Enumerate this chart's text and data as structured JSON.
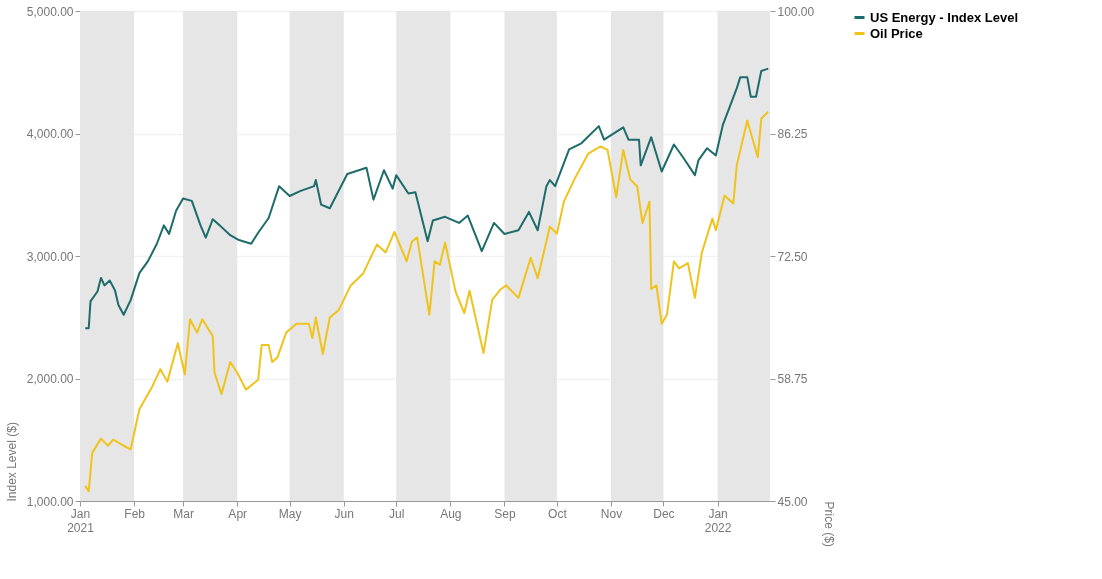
{
  "chart_data": {
    "type": "line",
    "ylabel": "Index Level ($)",
    "y2label": "Price ($)",
    "xlim": [
      "2021-01-01",
      "2022-01-31"
    ],
    "xticks": [
      {
        "value": "2021-01-01",
        "label": "Jan 2021"
      },
      {
        "value": "2021-02-01",
        "label": "Feb"
      },
      {
        "value": "2021-03-01",
        "label": "Mar"
      },
      {
        "value": "2021-04-01",
        "label": "Apr"
      },
      {
        "value": "2021-05-01",
        "label": "May"
      },
      {
        "value": "2021-06-01",
        "label": "Jun"
      },
      {
        "value": "2021-07-01",
        "label": "Jul"
      },
      {
        "value": "2021-08-01",
        "label": "Aug"
      },
      {
        "value": "2021-09-01",
        "label": "Sep"
      },
      {
        "value": "2021-10-01",
        "label": "Oct"
      },
      {
        "value": "2021-11-01",
        "label": "Nov"
      },
      {
        "value": "2021-12-01",
        "label": "Dec"
      },
      {
        "value": "2022-01-01",
        "label": "Jan 2022"
      }
    ],
    "ylim": [
      1000,
      5000
    ],
    "yticks": [
      {
        "value": 1000,
        "label": "1,000.00"
      },
      {
        "value": 2000,
        "label": "2,000.00"
      },
      {
        "value": 3000,
        "label": "3,000.00"
      },
      {
        "value": 4000,
        "label": "4,000.00"
      },
      {
        "value": 5000,
        "label": "5,000.00"
      }
    ],
    "y2lim": [
      45,
      100
    ],
    "y2ticks": [
      {
        "value": 45,
        "label": "45.00"
      },
      {
        "value": 58.75,
        "label": "58.75"
      },
      {
        "value": 72.5,
        "label": "72.50"
      },
      {
        "value": 86.25,
        "label": "86.25"
      },
      {
        "value": 100,
        "label": "100.00"
      }
    ],
    "grid": "y",
    "legend": "top right",
    "line_style": "solid",
    "marker": "none",
    "bands": [
      {
        "axis": "x",
        "from": "2021-01-01",
        "to": "2021-02-01",
        "color": "#e6e6e6"
      },
      {
        "axis": "x",
        "from": "2021-03-01",
        "to": "2021-04-01",
        "color": "#e6e6e6"
      },
      {
        "axis": "x",
        "from": "2021-05-01",
        "to": "2021-06-01",
        "color": "#e6e6e6"
      },
      {
        "axis": "x",
        "from": "2021-07-01",
        "to": "2021-08-01",
        "color": "#e6e6e6"
      },
      {
        "axis": "x",
        "from": "2021-09-01",
        "to": "2021-10-01",
        "color": "#e6e6e6"
      },
      {
        "axis": "x",
        "from": "2021-11-01",
        "to": "2021-12-01",
        "color": "#e6e6e6"
      },
      {
        "axis": "x",
        "from": "2022-01-01",
        "to": "2022-01-31",
        "color": "#e6e6e6"
      }
    ],
    "series": [
      {
        "name": "US Energy - Index Level",
        "color": "#1d6b6a",
        "x": [
          "2021-01-04",
          "2021-01-06",
          "2021-01-07",
          "2021-01-11",
          "2021-01-13",
          "2021-01-15",
          "2021-01-18",
          "2021-01-21",
          "2021-01-23",
          "2021-01-26",
          "2021-01-30",
          "2021-02-04",
          "2021-02-09",
          "2021-02-14",
          "2021-02-18",
          "2021-02-21",
          "2021-02-25",
          "2021-03-01",
          "2021-03-06",
          "2021-03-11",
          "2021-03-14",
          "2021-03-18",
          "2021-03-22",
          "2021-03-28",
          "2021-04-02",
          "2021-04-09",
          "2021-04-13",
          "2021-04-19",
          "2021-04-25",
          "2021-05-01",
          "2021-05-07",
          "2021-05-15",
          "2021-05-16",
          "2021-05-19",
          "2021-05-24",
          "2021-06-03",
          "2021-06-14",
          "2021-06-18",
          "2021-06-24",
          "2021-06-29",
          "2021-07-01",
          "2021-07-08",
          "2021-07-12",
          "2021-07-19",
          "2021-07-22",
          "2021-07-29",
          "2021-08-06",
          "2021-08-11",
          "2021-08-19",
          "2021-08-26",
          "2021-09-01",
          "2021-09-09",
          "2021-09-15",
          "2021-09-20",
          "2021-09-25",
          "2021-09-27",
          "2021-09-30",
          "2021-10-08",
          "2021-10-15",
          "2021-10-25",
          "2021-10-28",
          "2021-11-08",
          "2021-11-11",
          "2021-11-17",
          "2021-11-18",
          "2021-11-24",
          "2021-11-30",
          "2021-12-07",
          "2021-12-12",
          "2021-12-19",
          "2021-12-21",
          "2021-12-26",
          "2021-12-31",
          "2022-01-04",
          "2022-01-08",
          "2022-01-12",
          "2022-01-14",
          "2022-01-18",
          "2022-01-20",
          "2022-01-23",
          "2022-01-26",
          "2022-01-30"
        ],
        "values": [
          2410,
          2410,
          2630,
          2710,
          2820,
          2760,
          2800,
          2720,
          2600,
          2520,
          2640,
          2860,
          2960,
          3100,
          3250,
          3180,
          3370,
          3470,
          3450,
          3250,
          3150,
          3300,
          3250,
          3170,
          3130,
          3100,
          3190,
          3310,
          3570,
          3490,
          3530,
          3570,
          3620,
          3420,
          3390,
          3670,
          3720,
          3460,
          3700,
          3550,
          3660,
          3510,
          3520,
          3120,
          3290,
          3320,
          3270,
          3330,
          3040,
          3270,
          3180,
          3210,
          3360,
          3210,
          3570,
          3620,
          3570,
          3870,
          3920,
          4060,
          3950,
          4050,
          3950,
          3950,
          3740,
          3970,
          3690,
          3910,
          3810,
          3660,
          3780,
          3880,
          3820,
          4070,
          4220,
          4370,
          4460,
          4460,
          4300,
          4300,
          4510,
          4530
        ]
      },
      {
        "name": "Oil Price",
        "color": "#f0c31c",
        "axis": "y2",
        "x": [
          "2021-01-04",
          "2021-01-06",
          "2021-01-08",
          "2021-01-13",
          "2021-01-17",
          "2021-01-20",
          "2021-01-26",
          "2021-01-30",
          "2021-02-04",
          "2021-02-11",
          "2021-02-16",
          "2021-02-20",
          "2021-02-26",
          "2021-03-02",
          "2021-03-05",
          "2021-03-09",
          "2021-03-12",
          "2021-03-18",
          "2021-03-19",
          "2021-03-23",
          "2021-03-28",
          "2021-04-01",
          "2021-04-06",
          "2021-04-13",
          "2021-04-15",
          "2021-04-19",
          "2021-04-21",
          "2021-04-24",
          "2021-04-29",
          "2021-05-05",
          "2021-05-12",
          "2021-05-14",
          "2021-05-16",
          "2021-05-20",
          "2021-05-24",
          "2021-05-29",
          "2021-06-05",
          "2021-06-12",
          "2021-06-20",
          "2021-06-25",
          "2021-06-30",
          "2021-07-07",
          "2021-07-10",
          "2021-07-13",
          "2021-07-20",
          "2021-07-23",
          "2021-07-26",
          "2021-07-29",
          "2021-08-04",
          "2021-08-09",
          "2021-08-12",
          "2021-08-20",
          "2021-08-25",
          "2021-08-30",
          "2021-09-02",
          "2021-09-09",
          "2021-09-16",
          "2021-09-20",
          "2021-09-27",
          "2021-10-01",
          "2021-10-05",
          "2021-10-11",
          "2021-10-19",
          "2021-10-26",
          "2021-10-30",
          "2021-11-04",
          "2021-11-08",
          "2021-11-12",
          "2021-11-16",
          "2021-11-19",
          "2021-11-23",
          "2021-11-24",
          "2021-11-27",
          "2021-11-30",
          "2021-12-03",
          "2021-12-07",
          "2021-12-10",
          "2021-12-15",
          "2021-12-19",
          "2021-12-23",
          "2021-12-29",
          "2021-12-31",
          "2022-01-05",
          "2022-01-10",
          "2022-01-12",
          "2022-01-18",
          "2022-01-24",
          "2022-01-26",
          "2022-01-30"
        ],
        "values": [
          46.7,
          46.1,
          50.4,
          52.0,
          51.2,
          51.9,
          51.2,
          50.8,
          55.3,
          57.7,
          59.8,
          58.4,
          62.7,
          59.2,
          65.4,
          63.9,
          65.4,
          63.5,
          59.4,
          57.0,
          60.6,
          59.4,
          57.5,
          58.6,
          62.5,
          62.5,
          60.6,
          61.1,
          63.9,
          64.9,
          64.9,
          63.3,
          65.6,
          61.5,
          65.6,
          66.4,
          69.2,
          70.5,
          73.8,
          72.9,
          75.2,
          71.9,
          74.1,
          74.6,
          65.9,
          71.9,
          71.5,
          74.0,
          68.5,
          66.1,
          68.6,
          61.6,
          67.6,
          68.8,
          69.2,
          67.8,
          72.3,
          70.0,
          75.8,
          75.0,
          78.6,
          81.1,
          84.0,
          84.8,
          84.4,
          79.1,
          84.4,
          81.1,
          80.3,
          76.2,
          78.6,
          68.8,
          69.2,
          64.9,
          65.9,
          71.9,
          71.1,
          71.7,
          67.8,
          72.9,
          76.7,
          75.4,
          79.3,
          78.4,
          82.7,
          87.7,
          83.6,
          87.9,
          88.7
        ]
      }
    ]
  }
}
